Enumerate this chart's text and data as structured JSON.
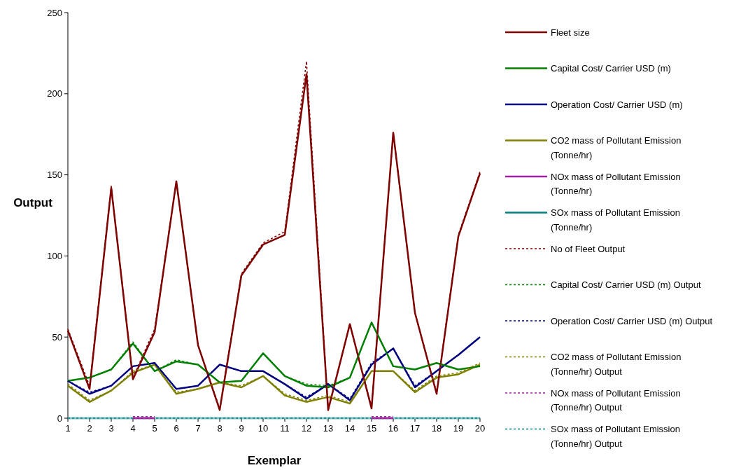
{
  "chart_data": {
    "type": "line",
    "xlabel": "Exemplar",
    "ylabel": "Output",
    "x": [
      1,
      2,
      3,
      4,
      5,
      6,
      7,
      8,
      9,
      10,
      11,
      12,
      13,
      14,
      15,
      16,
      17,
      18,
      19,
      20
    ],
    "xlim": [
      1,
      20
    ],
    "xticks": [
      1,
      2,
      3,
      4,
      5,
      6,
      7,
      8,
      9,
      10,
      11,
      12,
      13,
      14,
      15,
      16,
      17,
      18,
      19,
      20
    ],
    "ylim": [
      0,
      250
    ],
    "yticks": [
      0,
      50,
      100,
      150,
      200,
      250
    ],
    "grid": false,
    "legend": "right",
    "marker": "none",
    "series": [
      {
        "name": "Fleet size",
        "color": "#800000",
        "line_style": "solid",
        "values": [
          54,
          18,
          142,
          24,
          53,
          146,
          45,
          5,
          88,
          107,
          113,
          212,
          5,
          58,
          6,
          176,
          65,
          15,
          112,
          151
        ]
      },
      {
        "name": "Capital Cost/ Carrier USD (m)",
        "color": "#008000",
        "line_style": "solid",
        "values": [
          23,
          25,
          30,
          46,
          29,
          35,
          33,
          22,
          23,
          40,
          26,
          20,
          19,
          25,
          59,
          32,
          30,
          34,
          30,
          32
        ]
      },
      {
        "name": "Operation Cost/ Carrier USD (m)",
        "color": "#000080",
        "line_style": "solid",
        "values": [
          23,
          15,
          20,
          32,
          34,
          18,
          20,
          33,
          29,
          29,
          21,
          12,
          21,
          11,
          33,
          43,
          19,
          29,
          39,
          50
        ]
      },
      {
        "name": "CO2 mass of Pollutant Emission (Tonne/hr)",
        "color": "#808000",
        "line_style": "solid",
        "values": [
          20,
          10,
          17,
          28,
          33,
          15,
          18,
          22,
          19,
          26,
          14,
          10,
          13,
          9,
          29,
          29,
          16,
          25,
          27,
          33
        ]
      },
      {
        "name": "NOx mass of Pollutant Emission (Tonne/hr)",
        "color": "#a020a0",
        "line_style": "solid",
        "values": [
          null,
          null,
          null,
          0,
          0,
          null,
          null,
          null,
          null,
          null,
          null,
          null,
          null,
          null,
          0,
          0,
          null,
          null,
          null,
          null
        ]
      },
      {
        "name": "SOx mass of Pollutant Emission (Tonne/hr)",
        "color": "#008080",
        "line_style": "solid",
        "values": [
          0,
          0,
          0,
          0,
          0,
          0,
          0,
          0,
          0,
          0,
          0,
          0,
          0,
          0,
          0,
          0,
          0,
          0,
          0,
          0
        ]
      },
      {
        "name": "No of Fleet Output",
        "color": "#800000",
        "line_style": "dotted",
        "values": [
          55,
          20,
          143,
          25,
          55,
          146,
          45,
          6,
          89,
          108,
          115,
          220,
          6,
          58,
          7,
          175,
          65,
          16,
          113,
          152
        ]
      },
      {
        "name": "Capital Cost/ Carrier USD (m) Output",
        "color": "#008000",
        "line_style": "dotted",
        "values": [
          23,
          25,
          30,
          47,
          29,
          36,
          33,
          22,
          23,
          40,
          26,
          21,
          20,
          25,
          59,
          32,
          30,
          34,
          30,
          32
        ]
      },
      {
        "name": "Operation Cost/ Carrier USD (m) Output",
        "color": "#000080",
        "line_style": "dotted",
        "values": [
          23,
          16,
          20,
          32,
          34,
          18,
          20,
          33,
          29,
          29,
          21,
          13,
          21,
          12,
          34,
          43,
          20,
          29,
          39,
          50
        ]
      },
      {
        "name": "CO2 mass of Pollutant Emission (Tonne/hr) Output",
        "color": "#808000",
        "line_style": "dotted",
        "values": [
          21,
          11,
          17,
          29,
          33,
          16,
          18,
          22,
          20,
          26,
          15,
          11,
          14,
          10,
          29,
          29,
          17,
          26,
          28,
          34
        ]
      },
      {
        "name": "NOx mass of Pollutant Emission (Tonne/hr) Output",
        "color": "#a020a0",
        "line_style": "dotted",
        "values": [
          null,
          null,
          null,
          1,
          1,
          null,
          null,
          null,
          null,
          null,
          null,
          null,
          null,
          null,
          1,
          1,
          null,
          null,
          null,
          null
        ]
      },
      {
        "name": "SOx mass of Pollutant Emission (Tonne/hr) Output",
        "color": "#008080",
        "line_style": "dotted",
        "values": [
          0,
          0,
          0,
          0,
          0,
          0,
          0,
          0,
          0,
          0,
          0,
          0,
          0,
          0,
          0,
          0,
          0,
          0,
          0,
          0
        ]
      }
    ]
  }
}
